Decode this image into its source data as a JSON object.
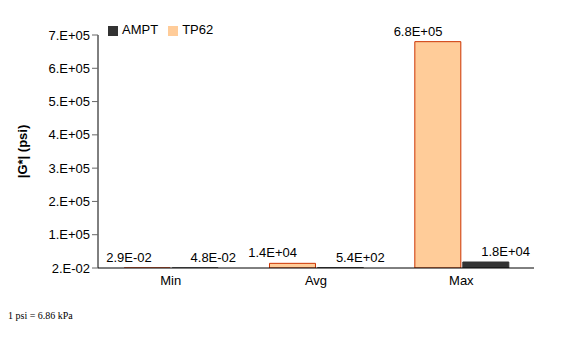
{
  "chart_data": {
    "type": "bar",
    "y_label": "|G*| (psi)",
    "footnote": "1 psi = 6.86 kPa",
    "categories": [
      "Min",
      "Avg",
      "Max"
    ],
    "series": [
      {
        "name": "TP62",
        "color": "#ffcc99",
        "values": [
          0.029,
          14000,
          680000
        ],
        "value_labels": [
          "2.9E-02",
          "1.4E+04",
          "6.8E+05"
        ]
      },
      {
        "name": "AMPT",
        "color": "#333333",
        "values": [
          0.048,
          540,
          18000
        ],
        "value_labels": [
          "4.8E-02",
          "5.4E+02",
          "1.8E+04"
        ]
      }
    ],
    "ylim": [
      0.02,
      700000
    ],
    "yticks": [
      {
        "value": 0.02,
        "label": "2.E-02"
      },
      {
        "value": 100000,
        "label": "1.E+05"
      },
      {
        "value": 200000,
        "label": "2.E+05"
      },
      {
        "value": 300000,
        "label": "3.E+05"
      },
      {
        "value": 400000,
        "label": "4.E+05"
      },
      {
        "value": 500000,
        "label": "5.E+05"
      },
      {
        "value": 600000,
        "label": "6.E+05"
      },
      {
        "value": 700000,
        "label": "7.E+05"
      }
    ],
    "data_labels": true,
    "grid": false,
    "legend": "upper left"
  }
}
